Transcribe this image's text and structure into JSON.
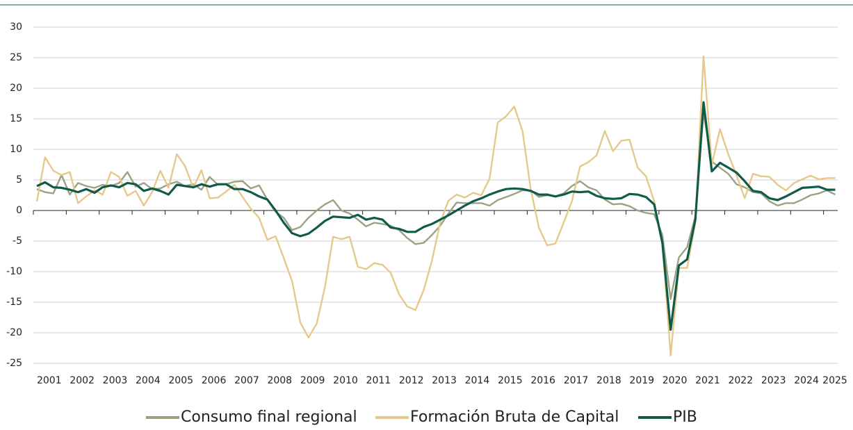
{
  "chart_data": {
    "type": "line",
    "categories": [
      "2001",
      null,
      null,
      null,
      "2002",
      null,
      null,
      null,
      "2003",
      null,
      null,
      null,
      "2004",
      null,
      null,
      null,
      "2005",
      null,
      null,
      null,
      "2006",
      null,
      null,
      null,
      "2007",
      null,
      null,
      null,
      "2008",
      null,
      null,
      null,
      "2009",
      null,
      null,
      null,
      "2010",
      null,
      null,
      null,
      "2011",
      null,
      null,
      null,
      "2012",
      null,
      null,
      null,
      "2013",
      null,
      null,
      null,
      "2014",
      null,
      null,
      null,
      "2015",
      null,
      null,
      null,
      "2016",
      null,
      null,
      null,
      "2017",
      null,
      null,
      null,
      "2018",
      null,
      null,
      null,
      "2019",
      null,
      null,
      null,
      "2020",
      null,
      null,
      null,
      "2021",
      null,
      null,
      null,
      "2022",
      null,
      null,
      null,
      "2023",
      null,
      null,
      null,
      "2024",
      null,
      null,
      null,
      "2025",
      null
    ],
    "series": [
      {
        "name": "Consumo final regional",
        "color": "#9aa284",
        "values": [
          3.5,
          3.0,
          2.8,
          5.8,
          2.6,
          4.5,
          4.0,
          3.7,
          4.2,
          4.0,
          4.5,
          6.3,
          3.9,
          4.5,
          3.5,
          3.6,
          4.3,
          4.7,
          4.0,
          4.3,
          3.4,
          5.5,
          4.2,
          4.3,
          4.7,
          4.8,
          3.6,
          4.1,
          1.8,
          -0.2,
          -1.2,
          -3.2,
          -2.7,
          -1.2,
          0.0,
          1.0,
          1.7,
          0.0,
          -0.5,
          -1.5,
          -2.6,
          -2.0,
          -2.2,
          -2.5,
          -3.2,
          -4.5,
          -5.5,
          -5.3,
          -4.0,
          -2.5,
          -0.5,
          1.3,
          1.2,
          1.2,
          1.2,
          0.8,
          1.7,
          2.2,
          2.7,
          3.3,
          3.3,
          2.2,
          2.5,
          2.3,
          2.8,
          4.0,
          4.8,
          3.8,
          3.3,
          1.8,
          1.0,
          1.1,
          0.7,
          0.0,
          -0.4,
          -0.6,
          -4.0,
          -14.5,
          -7.7,
          -6.0,
          -1.0,
          16.0,
          8.0,
          7.0,
          6.0,
          4.3,
          3.8,
          3.0,
          2.8,
          1.5,
          0.8,
          1.2,
          1.2,
          1.8,
          2.5,
          2.8,
          3.3,
          2.6
        ]
      },
      {
        "name": "Formación Bruta de Capital",
        "color": "#e6c98a",
        "values": [
          1.5,
          8.7,
          6.5,
          5.8,
          6.3,
          1.2,
          2.3,
          3.3,
          2.6,
          6.3,
          5.5,
          2.4,
          3.2,
          0.8,
          3.0,
          6.5,
          3.7,
          9.2,
          7.3,
          3.7,
          6.6,
          2.0,
          2.1,
          3.1,
          4.2,
          2.2,
          0.3,
          -1.2,
          -4.8,
          -4.2,
          -7.8,
          -11.5,
          -18.3,
          -20.8,
          -18.5,
          -12.5,
          -4.3,
          -4.7,
          -4.3,
          -9.2,
          -9.6,
          -8.6,
          -8.9,
          -10.2,
          -13.7,
          -15.7,
          -16.3,
          -13.0,
          -8.2,
          -2.0,
          1.6,
          2.6,
          2.1,
          2.9,
          2.5,
          5.2,
          14.4,
          15.4,
          17.0,
          13.0,
          3.5,
          -2.8,
          -5.7,
          -5.4,
          -2.0,
          1.5,
          7.2,
          7.9,
          9.0,
          13.0,
          9.7,
          11.4,
          11.6,
          7.0,
          5.6,
          1.5,
          -5.5,
          -23.7,
          -9.4,
          -9.4,
          -2.0,
          25.2,
          7.5,
          13.3,
          9.2,
          5.8,
          2.0,
          6.0,
          5.6,
          5.5,
          4.2,
          3.3,
          4.5,
          5.1,
          5.7,
          5.1,
          5.3,
          5.3
        ]
      },
      {
        "name": "PIB",
        "color": "#0f5a48",
        "values": [
          4.0,
          4.6,
          3.8,
          3.7,
          3.4,
          3.0,
          3.5,
          2.9,
          3.8,
          4.1,
          3.8,
          4.5,
          4.3,
          3.2,
          3.6,
          3.2,
          2.6,
          4.2,
          4.0,
          3.8,
          4.3,
          3.9,
          4.3,
          4.3,
          3.5,
          3.5,
          3.0,
          2.3,
          1.8,
          0.0,
          -2.0,
          -3.7,
          -4.2,
          -3.8,
          -2.8,
          -1.7,
          -1.0,
          -1.1,
          -1.2,
          -0.7,
          -1.5,
          -1.2,
          -1.5,
          -2.8,
          -3.0,
          -3.5,
          -3.5,
          -2.7,
          -2.2,
          -1.5,
          -0.8,
          0.0,
          0.8,
          1.5,
          2.0,
          2.6,
          3.1,
          3.5,
          3.6,
          3.5,
          3.2,
          2.6,
          2.6,
          2.3,
          2.6,
          3.1,
          3.0,
          3.1,
          2.4,
          2.0,
          1.9,
          2.0,
          2.7,
          2.6,
          2.2,
          1.0,
          -5.3,
          -19.5,
          -9.0,
          -8.0,
          -1.5,
          17.7,
          6.4,
          7.8,
          7.0,
          6.2,
          4.8,
          3.2,
          3.0,
          2.0,
          1.7,
          2.3,
          3.0,
          3.7,
          3.8,
          3.9,
          3.4,
          3.4
        ]
      }
    ],
    "ylim": [
      -25,
      30
    ],
    "yticks": [
      -25,
      -20,
      -15,
      -10,
      -5,
      0,
      5,
      10,
      15,
      20,
      25,
      30
    ],
    "grid": true,
    "legend": "bottom"
  }
}
